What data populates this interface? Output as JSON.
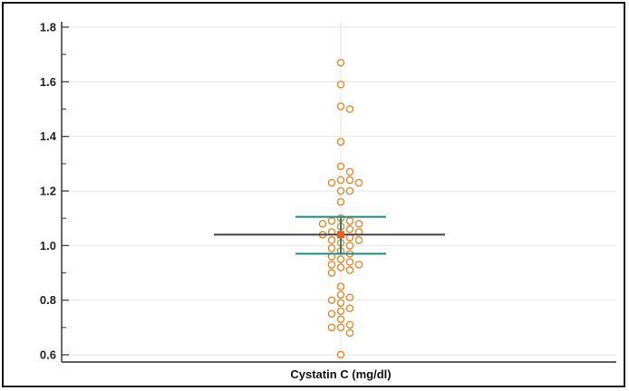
{
  "chart_data": {
    "type": "scatter",
    "subtype": "dot-plot",
    "title": "",
    "xlabel": "Cystatin C (mg/dl)",
    "ylabel": "",
    "ylim": [
      0.58,
      1.82
    ],
    "yticks": [
      0.6,
      0.8,
      1.0,
      1.2,
      1.4,
      1.6,
      1.8
    ],
    "ytick_labels": [
      "0.6",
      "0.8",
      "1.0",
      "1.2",
      "1.4",
      "1.6",
      "1.8"
    ],
    "grid": true,
    "colors": {
      "points": "#e08a2e",
      "mean_marker": "#e8601c",
      "mean_line": "#444444",
      "ci": "#1a8a8a",
      "grid": "#e4e4e4",
      "axis": "#333333"
    },
    "points": [
      1.67,
      1.59,
      1.51,
      1.5,
      1.38,
      1.29,
      1.27,
      1.24,
      1.24,
      1.23,
      1.23,
      1.2,
      1.2,
      1.16,
      1.1,
      1.09,
      1.09,
      1.08,
      1.08,
      1.07,
      1.06,
      1.05,
      1.05,
      1.04,
      1.04,
      1.03,
      1.02,
      1.02,
      1.01,
      1.0,
      0.99,
      0.98,
      0.97,
      0.96,
      0.95,
      0.94,
      0.93,
      0.93,
      0.92,
      0.91,
      0.9,
      0.85,
      0.82,
      0.81,
      0.8,
      0.79,
      0.77,
      0.76,
      0.75,
      0.73,
      0.71,
      0.7,
      0.7,
      0.68,
      0.6
    ],
    "mean": 1.04,
    "ci_upper": 1.105,
    "ci_lower": 0.97
  }
}
